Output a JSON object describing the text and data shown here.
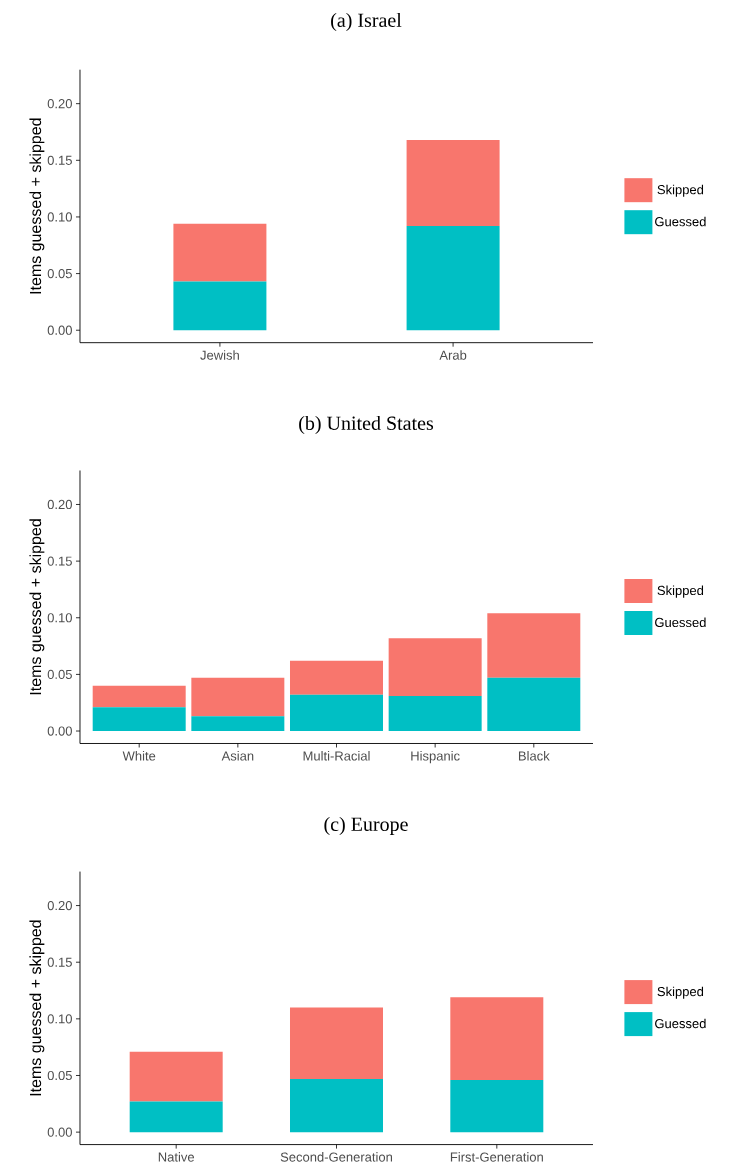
{
  "chart_data": [
    {
      "type": "bar",
      "title": "(a) Israel",
      "ylabel": "Items guessed + skipped",
      "categories": [
        "Jewish",
        "Arab"
      ],
      "stacked": true,
      "legend": "right",
      "ylim": [
        -0.011,
        0.23
      ],
      "yticks": [
        {
          "value": 0,
          "label": "0.00"
        },
        {
          "value": 0.05,
          "label": "0.05"
        },
        {
          "value": 0.1,
          "label": "0.10"
        },
        {
          "value": 0.15,
          "label": "0.15"
        },
        {
          "value": 0.2,
          "label": "0.20"
        }
      ],
      "series": [
        {
          "name": "Guessed",
          "color": "#00bfc4",
          "values": [
            0.043,
            0.092
          ]
        },
        {
          "name": "Skipped",
          "color": "#f8766d",
          "values": [
            0.051,
            0.076
          ]
        }
      ]
    },
    {
      "type": "bar",
      "title": "(b) United States",
      "ylabel": "Items guessed + skipped",
      "categories": [
        "White",
        "Asian",
        "Multi-Racial",
        "Hispanic",
        "Black"
      ],
      "stacked": true,
      "legend": "right",
      "ylim": [
        -0.011,
        0.23
      ],
      "yticks": [
        {
          "value": 0,
          "label": "0.00"
        },
        {
          "value": 0.05,
          "label": "0.05"
        },
        {
          "value": 0.1,
          "label": "0.10"
        },
        {
          "value": 0.15,
          "label": "0.15"
        },
        {
          "value": 0.2,
          "label": "0.20"
        }
      ],
      "series": [
        {
          "name": "Guessed",
          "color": "#00bfc4",
          "values": [
            0.021,
            0.013,
            0.032,
            0.031,
            0.047
          ]
        },
        {
          "name": "Skipped",
          "color": "#f8766d",
          "values": [
            0.019,
            0.034,
            0.03,
            0.051,
            0.057
          ]
        }
      ]
    },
    {
      "type": "bar",
      "title": "(c) Europe",
      "ylabel": "Items guessed + skipped",
      "categories": [
        "Native",
        "Second-Generation",
        "First-Generation"
      ],
      "stacked": true,
      "legend": "right",
      "ylim": [
        -0.011,
        0.23
      ],
      "yticks": [
        {
          "value": 0,
          "label": "0.00"
        },
        {
          "value": 0.05,
          "label": "0.05"
        },
        {
          "value": 0.1,
          "label": "0.10"
        },
        {
          "value": 0.15,
          "label": "0.15"
        },
        {
          "value": 0.2,
          "label": "0.20"
        }
      ],
      "series": [
        {
          "name": "Guessed",
          "color": "#00bfc4",
          "values": [
            0.027,
            0.047,
            0.046
          ]
        },
        {
          "name": "Skipped",
          "color": "#f8766d",
          "values": [
            0.044,
            0.063,
            0.073
          ]
        }
      ]
    }
  ]
}
